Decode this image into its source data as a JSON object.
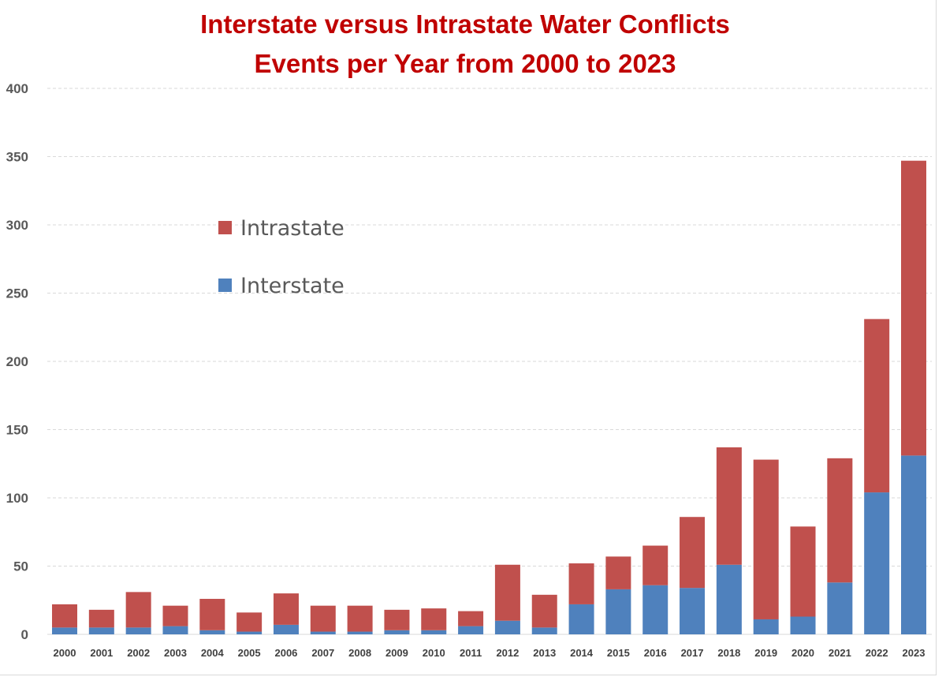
{
  "title_line1": "Interstate versus Intrastate Water Conflicts",
  "title_line2": "Events per Year from 2000 to 2023",
  "colors": {
    "title": "#c00000",
    "intrastate": "#c0504d",
    "interstate": "#4f81bd",
    "grid": "#d9d9d9",
    "tick_text": "#595959"
  },
  "chart_data": {
    "type": "bar",
    "stacked": true,
    "title": "Interstate versus Intrastate Water Conflicts Events per Year from 2000 to 2023",
    "xlabel": "",
    "ylabel": "",
    "ylim": [
      0,
      400
    ],
    "yticks": [
      0,
      50,
      100,
      150,
      200,
      250,
      300,
      350,
      400
    ],
    "grid": "horizontal dashed",
    "legend_position": "upper-left",
    "categories": [
      "2000",
      "2001",
      "2002",
      "2003",
      "2004",
      "2005",
      "2006",
      "2007",
      "2008",
      "2009",
      "2010",
      "2011",
      "2012",
      "2013",
      "2014",
      "2015",
      "2016",
      "2017",
      "2018",
      "2019",
      "2020",
      "2021",
      "2022",
      "2023"
    ],
    "series": [
      {
        "name": "Interstate",
        "color": "#4f81bd",
        "values": [
          5,
          5,
          5,
          6,
          3,
          2,
          7,
          2,
          2,
          3,
          3,
          6,
          10,
          5,
          22,
          33,
          36,
          34,
          51,
          11,
          13,
          38,
          104,
          131
        ]
      },
      {
        "name": "Intrastate",
        "color": "#c0504d",
        "values": [
          17,
          13,
          26,
          15,
          23,
          14,
          23,
          19,
          19,
          15,
          16,
          11,
          41,
          24,
          30,
          24,
          29,
          52,
          86,
          117,
          66,
          91,
          127,
          216
        ]
      }
    ],
    "legend": [
      {
        "name": "Intrastate",
        "color": "#c0504d"
      },
      {
        "name": "Interstate",
        "color": "#4f81bd"
      }
    ]
  }
}
